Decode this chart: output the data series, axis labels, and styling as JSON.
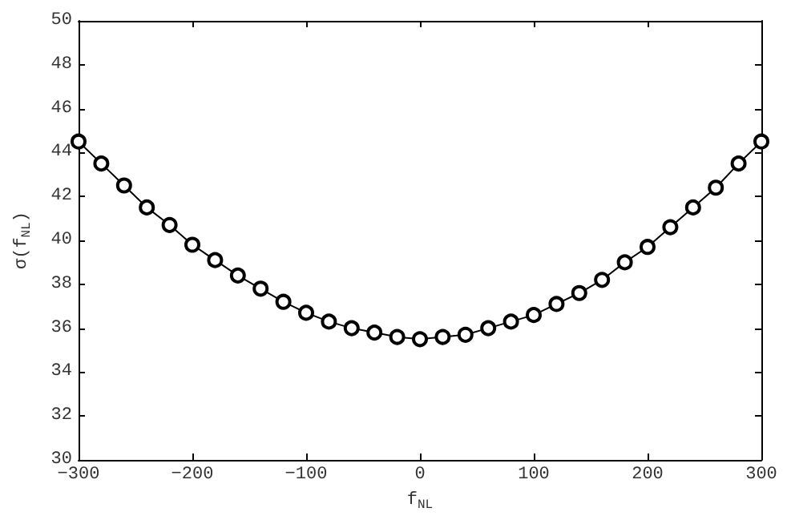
{
  "chart_data": {
    "type": "line",
    "xlabel": "f$_{NL}$",
    "ylabel": "σ(f$_{NL}$)",
    "x": [
      -300,
      -280,
      -260,
      -240,
      -220,
      -200,
      -180,
      -160,
      -140,
      -120,
      -100,
      -80,
      -60,
      -40,
      -20,
      0,
      20,
      40,
      60,
      80,
      100,
      120,
      140,
      160,
      180,
      200,
      220,
      240,
      260,
      280,
      300
    ],
    "series": [
      {
        "color": "#000000",
        "values": [
          44.5,
          43.5,
          42.5,
          41.5,
          40.7,
          39.8,
          39.1,
          38.4,
          37.8,
          37.2,
          36.7,
          36.3,
          36.0,
          35.8,
          35.6,
          35.5,
          35.6,
          35.7,
          36.0,
          36.3,
          36.6,
          37.1,
          37.6,
          38.2,
          39.0,
          39.7,
          40.6,
          41.5,
          42.4,
          43.5,
          44.5
        ]
      }
    ],
    "xlim": [
      -300,
      300
    ],
    "xticks": [
      -300,
      -200,
      -100,
      0,
      100,
      200,
      300
    ],
    "ylim": [
      30,
      50
    ],
    "yticks": [
      30,
      32,
      34,
      36,
      38,
      40,
      42,
      44,
      46,
      48,
      50
    ],
    "grid": false,
    "marker": "circle",
    "line_style": "solid"
  }
}
